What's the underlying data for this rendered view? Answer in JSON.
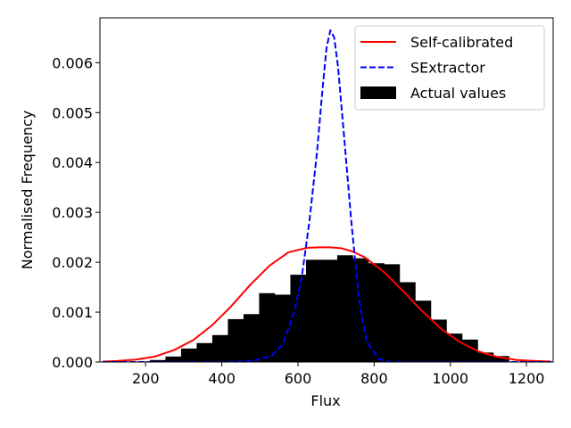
{
  "chart_data": {
    "type": "bar",
    "title": "",
    "xlabel": "Flux",
    "ylabel": "Normalised Frequency",
    "xlim": [
      80,
      1270
    ],
    "ylim": [
      0,
      0.0069
    ],
    "xticks": [
      200,
      400,
      600,
      800,
      1000,
      1200
    ],
    "yticks": [
      0.0,
      0.001,
      0.002,
      0.003,
      0.004,
      0.005,
      0.006
    ],
    "ytick_labels": [
      "0.000",
      "0.001",
      "0.002",
      "0.003",
      "0.004",
      "0.005",
      "0.006"
    ],
    "grid": false,
    "legend_position": "top-right",
    "histogram": {
      "name": "Actual values",
      "color": "#000000",
      "bin_edges": [
        170,
        211,
        252,
        293,
        334,
        375,
        416,
        457,
        498,
        539,
        580,
        621,
        662,
        703,
        744,
        785,
        826,
        867,
        908,
        949,
        990,
        1031,
        1072,
        1113,
        1154
      ],
      "values": [
        1e-05,
        4e-05,
        0.00011,
        0.00027,
        0.00038,
        0.00054,
        0.00086,
        0.00096,
        0.00138,
        0.00135,
        0.00175,
        0.00205,
        0.00205,
        0.00214,
        0.00208,
        0.00198,
        0.00196,
        0.0016,
        0.00123,
        0.00085,
        0.00057,
        0.00045,
        0.00019,
        0.00012
      ]
    },
    "series": [
      {
        "name": "Self-calibrated",
        "style": "solid",
        "color": "#ff0000",
        "x": [
          87,
          125,
          175,
          225,
          275,
          325,
          375,
          425,
          475,
          525,
          575,
          625,
          655,
          685,
          715,
          745,
          775,
          825,
          875,
          925,
          975,
          1025,
          1075,
          1125,
          1175,
          1225,
          1265
        ],
        "values": [
          1e-05,
          2e-05,
          5e-05,
          0.00011,
          0.00024,
          0.00044,
          0.00074,
          0.00112,
          0.00155,
          0.00193,
          0.0022,
          0.00229,
          0.0023,
          0.0023,
          0.00228,
          0.00221,
          0.0021,
          0.00181,
          0.00143,
          0.00103,
          0.00067,
          0.0004,
          0.00021,
          0.0001,
          4e-05,
          2e-05,
          1e-05
        ]
      },
      {
        "name": "SExtractor",
        "style": "dashed",
        "color": "#0000ff",
        "x": [
          87,
          400,
          480,
          530,
          560,
          590,
          610,
          630,
          650,
          665,
          675,
          685,
          695,
          705,
          720,
          740,
          760,
          780,
          810,
          840,
          890,
          960,
          1265
        ],
        "values": [
          0.0,
          0.0,
          2e-05,
          0.00012,
          0.00036,
          0.00099,
          0.0017,
          0.00282,
          0.00421,
          0.00552,
          0.0063,
          0.00665,
          0.00651,
          0.00593,
          0.00462,
          0.00282,
          0.00126,
          0.00043,
          7e-05,
          5e-06,
          0.0,
          0.0,
          0.0
        ]
      }
    ]
  }
}
